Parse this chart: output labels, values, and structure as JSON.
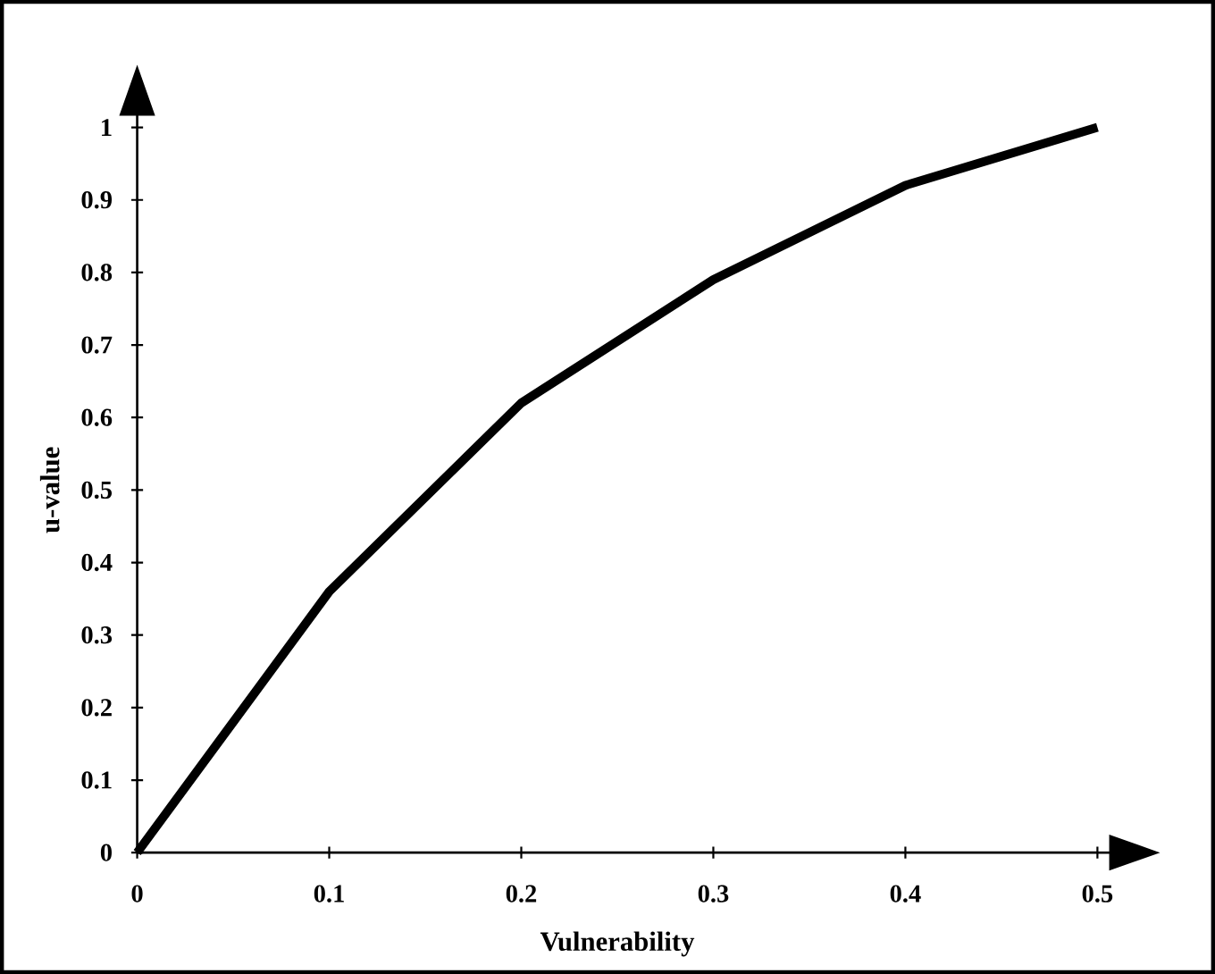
{
  "chart_data": {
    "type": "line",
    "xlabel": "Vulnerability",
    "ylabel": "u-value",
    "color": "#000000",
    "x": [
      0,
      0.1,
      0.2,
      0.3,
      0.4,
      0.5
    ],
    "values": [
      0,
      0.36,
      0.62,
      0.79,
      0.92,
      1.0
    ],
    "xlim": [
      0,
      0.5
    ],
    "ylim": [
      0,
      1
    ],
    "xticks": [
      0,
      0.1,
      0.2,
      0.3,
      0.4,
      0.5
    ],
    "yticks": [
      0,
      0.1,
      0.2,
      0.3,
      0.4,
      0.5,
      0.6,
      0.7,
      0.8,
      0.9,
      1
    ],
    "marker": "none",
    "line_style": "solid"
  }
}
